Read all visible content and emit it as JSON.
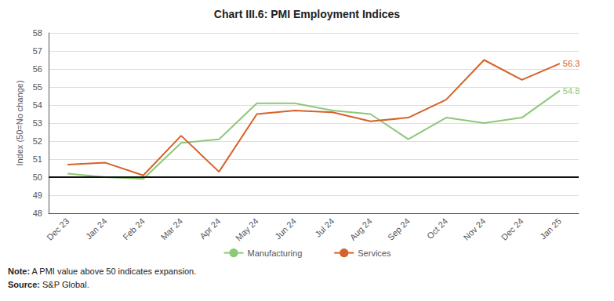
{
  "chart_data": {
    "type": "line",
    "title": "Chart III.6: PMI Employment Indices",
    "ylabel": "Index (50=No change)",
    "categories": [
      "Dec 23",
      "Jan 24",
      "Feb 24",
      "Mar 24",
      "Apr 24",
      "May 24",
      "Jun 24",
      "Jul 24",
      "Aug 24",
      "Sep 24",
      "Oct 24",
      "Nov 24",
      "Dec 24",
      "Jan 25"
    ],
    "series": [
      {
        "name": "Manufacturing",
        "color": "#8dc87a",
        "values": [
          50.2,
          50.0,
          49.9,
          51.9,
          52.1,
          54.1,
          54.1,
          53.7,
          53.5,
          52.1,
          53.3,
          53.0,
          53.3,
          54.8
        ],
        "annotation": "54.8"
      },
      {
        "name": "Services",
        "color": "#d4622a",
        "values": [
          50.7,
          50.8,
          50.1,
          52.3,
          50.3,
          53.5,
          53.7,
          53.6,
          53.1,
          53.3,
          54.3,
          56.5,
          55.4,
          56.3
        ],
        "annotation": "56.3"
      }
    ],
    "reference_line": {
      "value": 50,
      "color": "#111111"
    },
    "ylim": [
      48,
      58
    ],
    "yticks": [
      48,
      49,
      50,
      51,
      52,
      53,
      54,
      55,
      56,
      57,
      58
    ],
    "grid": "y",
    "legend": "bottom",
    "notes": [
      {
        "bold": "Note:",
        "text": " A PMI value above 50 indicates expansion."
      },
      {
        "bold": "Source:",
        "text": " S&P Global."
      }
    ]
  }
}
